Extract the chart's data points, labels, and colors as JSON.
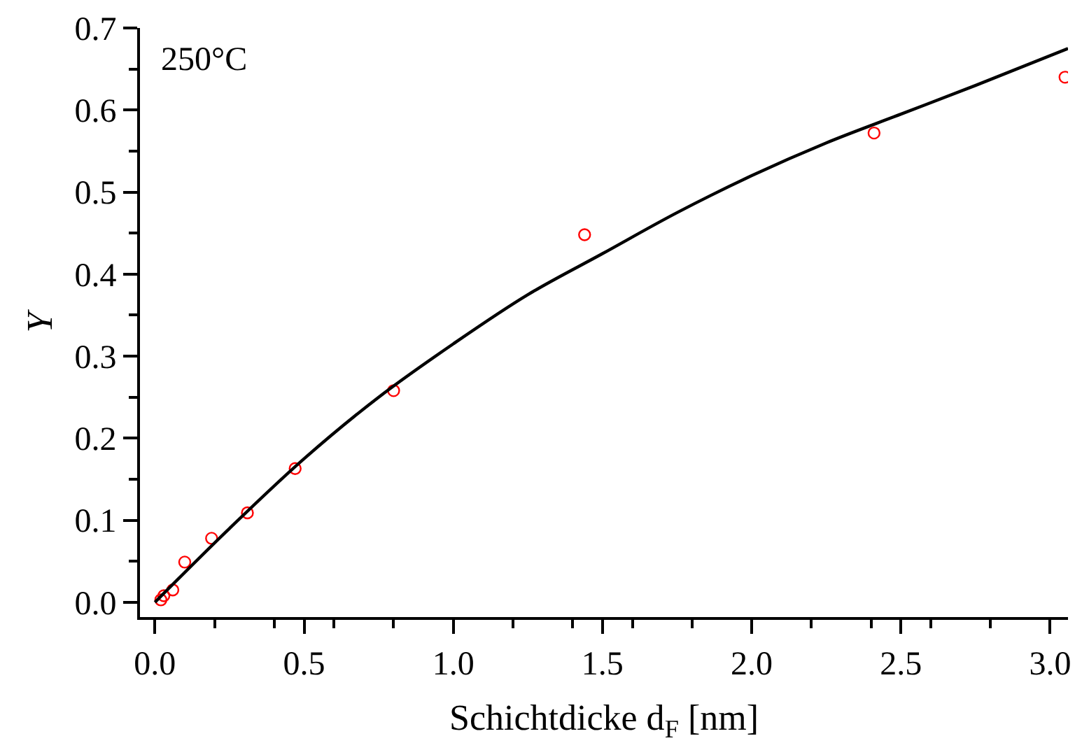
{
  "chart_data": {
    "type": "scatter",
    "xlabel": "Schichtdicke d$_{F}$ [nm]",
    "ylabel": "Y",
    "annotations": [
      "250°C"
    ],
    "xlim": [
      -0.05,
      3.06
    ],
    "ylim": [
      -0.018,
      0.7
    ],
    "xticks": [
      {
        "value": 0,
        "label": "0.0"
      },
      0.5,
      {
        "value": 1,
        "label": "1.0"
      },
      1.5,
      {
        "value": 2,
        "label": "2.0"
      },
      2.5,
      {
        "value": 3,
        "label": "3.0"
      }
    ],
    "yticks": [
      {
        "value": 0,
        "label": "0.0"
      },
      0.1,
      0.2,
      0.3,
      0.4,
      0.5,
      0.6,
      0.7
    ],
    "grid": false,
    "series": [
      {
        "color": "#ff0000",
        "marker": "circle",
        "x": [
          0.02,
          0.03,
          0.06,
          0.1,
          0.19,
          0.31,
          0.47,
          0.8,
          1.44,
          2.41,
          3.05
        ],
        "values": [
          0.003,
          0.008,
          0.015,
          0.049,
          0.078,
          0.109,
          0.163,
          0.258,
          0.448,
          0.572,
          0.64
        ]
      },
      {
        "type": "line",
        "color": "#000000",
        "marker": "none",
        "line_style": "solid",
        "x": [
          0,
          0.25,
          0.5,
          0.75,
          1.0,
          1.25,
          1.5,
          1.75,
          2.0,
          2.25,
          2.5,
          2.75,
          3.06
        ],
        "values": [
          0,
          0.09,
          0.175,
          0.25,
          0.315,
          0.375,
          0.425,
          0.475,
          0.52,
          0.56,
          0.595,
          0.63,
          0.675
        ]
      }
    ]
  }
}
